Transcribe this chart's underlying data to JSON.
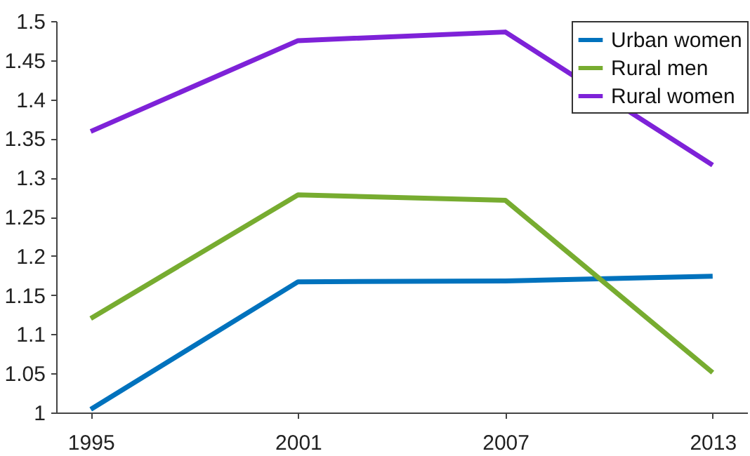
{
  "chart_data": {
    "type": "line",
    "x": [
      1995,
      2001,
      2007,
      2013
    ],
    "series": [
      {
        "name": "Urban women",
        "color": "#0072bd",
        "values": [
          1.004,
          1.167,
          1.168,
          1.174
        ]
      },
      {
        "name": "Rural men",
        "color": "#77ac30",
        "values": [
          1.12,
          1.278,
          1.271,
          1.051
        ]
      },
      {
        "name": "Rural women",
        "color": "#7e22d8",
        "values": [
          1.359,
          1.475,
          1.486,
          1.316
        ]
      }
    ],
    "xlim": [
      1994,
      2014
    ],
    "xticks": [
      1995,
      2001,
      2007,
      2013
    ],
    "ylim": [
      1,
      1.5
    ],
    "yticks": [
      1,
      1.05,
      1.1,
      1.15,
      1.2,
      1.25,
      1.3,
      1.35,
      1.4,
      1.45,
      1.5
    ],
    "grid": false,
    "legend": "top right",
    "marker": "none",
    "line_style": "solid"
  }
}
